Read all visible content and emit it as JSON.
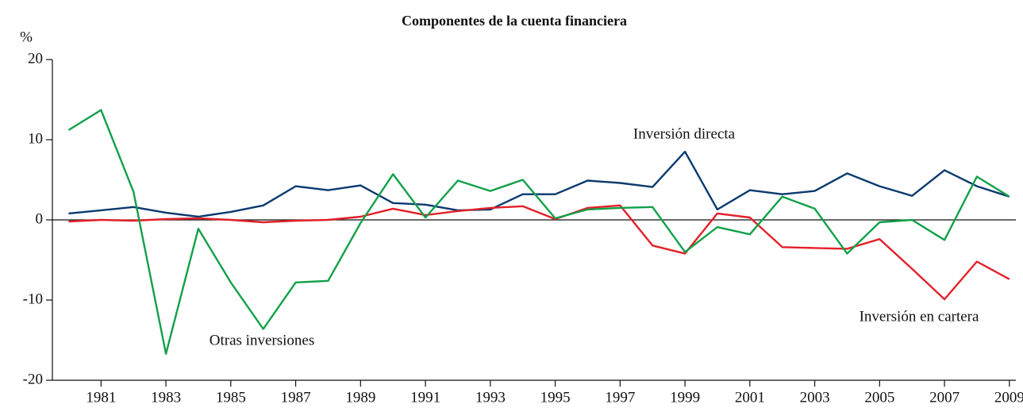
{
  "chart_data": {
    "type": "line",
    "title": "Componentes de la cuenta financiera",
    "y_label": "%",
    "x": [
      1980,
      1981,
      1982,
      1983,
      1984,
      1985,
      1986,
      1987,
      1988,
      1989,
      1990,
      1991,
      1992,
      1993,
      1994,
      1995,
      1996,
      1997,
      1998,
      1999,
      2000,
      2001,
      2002,
      2003,
      2004,
      2005,
      2006,
      2007,
      2008,
      2009
    ],
    "xlim": [
      1979.5,
      2009.2
    ],
    "xticks": [
      1981,
      1983,
      1985,
      1987,
      1989,
      1991,
      1993,
      1995,
      1997,
      1999,
      2001,
      2003,
      2005,
      2007,
      2009
    ],
    "ylim": [
      -20,
      20
    ],
    "yticks": [
      -20,
      -10,
      0,
      10,
      20
    ],
    "series": [
      {
        "name": "Inversión directa",
        "color": "#0a3a6e",
        "values": [
          0.8,
          1.2,
          1.6,
          0.9,
          0.4,
          1.0,
          1.8,
          4.2,
          3.7,
          4.3,
          2.1,
          1.9,
          1.2,
          1.3,
          3.2,
          3.2,
          4.9,
          4.6,
          4.1,
          8.5,
          1.3,
          3.7,
          3.2,
          3.6,
          5.8,
          4.2,
          3.0,
          6.2,
          4.2,
          2.9
        ]
      },
      {
        "name": "Inversión en cartera",
        "color": "#e2202a",
        "values": [
          -0.2,
          0,
          -0.1,
          0.1,
          0.2,
          0,
          -0.3,
          -0.1,
          0,
          0.4,
          1.4,
          0.6,
          1.1,
          1.5,
          1.7,
          0.1,
          1.5,
          1.8,
          -3.2,
          -4.2,
          0.8,
          0.3,
          -3.4,
          -3.5,
          -3.6,
          -2.4,
          -6.1,
          -9.9,
          -5.2,
          -7.4
        ]
      },
      {
        "name": "Otras inversiones",
        "color": "#12a04a",
        "values": [
          11.2,
          13.7,
          3.5,
          -16.7,
          -1.1,
          -7.8,
          -13.6,
          -7.8,
          -7.6,
          -0.4,
          5.7,
          0.3,
          4.9,
          3.6,
          5.0,
          0.2,
          1.3,
          1.5,
          1.6,
          -4.0,
          -0.9,
          -1.8,
          2.9,
          1.4,
          -4.2,
          -0.3,
          0.0,
          -2.5,
          5.4,
          2.9
        ]
      }
    ]
  }
}
